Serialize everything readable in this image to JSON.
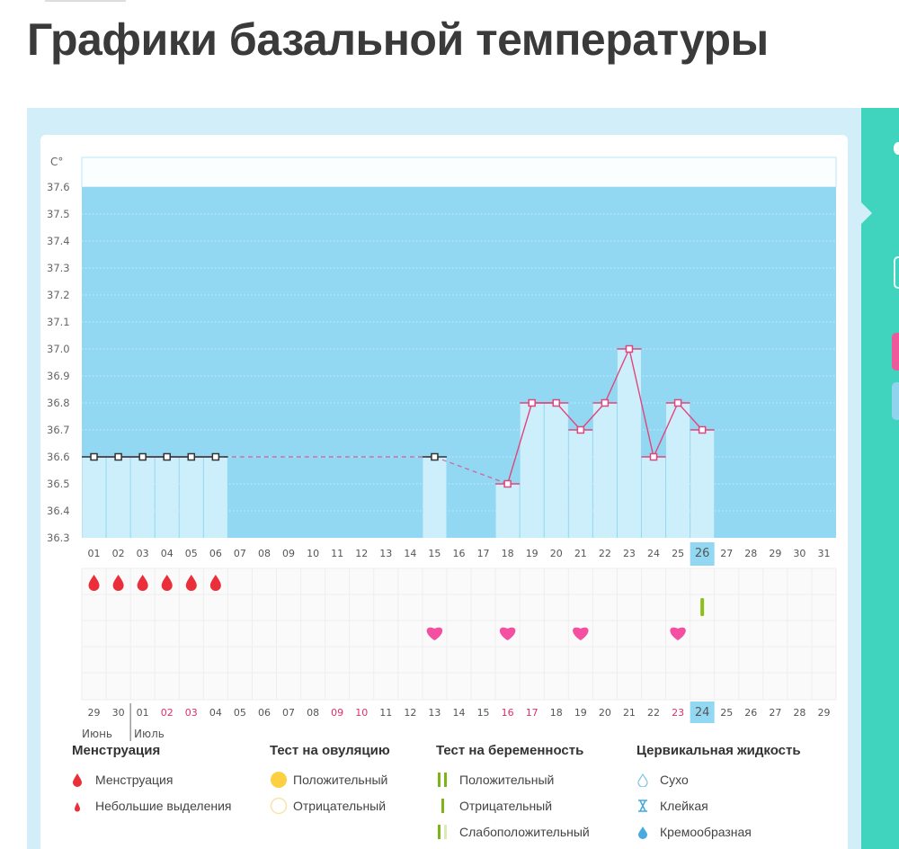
{
  "page_title": "Графики базальной температуры",
  "colors": {
    "plot_bg": "#93d8f2",
    "bar": "#cdeefb",
    "line": "#e0457b",
    "marker_early": "#333333",
    "heart": "#f44fa0",
    "drop": "#ea2f3a",
    "weekend_text": "#e0306a",
    "highlight": "#93d8f2",
    "side_panel": "#40d4bf"
  },
  "chart_data": {
    "type": "bar+line",
    "ylabel": "C°",
    "ylim": [
      36.3,
      37.6
    ],
    "yticks": [
      "37.6",
      "37.5",
      "37.4",
      "37.3",
      "37.2",
      "37.1",
      "37.0",
      "36.9",
      "36.8",
      "36.7",
      "36.6",
      "36.5",
      "36.4",
      "36.3"
    ],
    "grid": true,
    "cycle_days": [
      "01",
      "02",
      "03",
      "04",
      "05",
      "06",
      "07",
      "08",
      "09",
      "10",
      "11",
      "12",
      "13",
      "14",
      "15",
      "16",
      "17",
      "18",
      "19",
      "20",
      "21",
      "22",
      "23",
      "24",
      "25",
      "26",
      "27",
      "28",
      "29",
      "30",
      "31"
    ],
    "temperatures": [
      36.6,
      36.6,
      36.6,
      36.6,
      36.6,
      36.6,
      null,
      null,
      null,
      null,
      null,
      null,
      null,
      null,
      36.6,
      null,
      null,
      36.5,
      36.8,
      36.8,
      36.7,
      36.8,
      37.0,
      36.6,
      36.8,
      36.7,
      null,
      null,
      null,
      null,
      null
    ],
    "highlighted_day": "26",
    "calendar_dates": [
      "29",
      "30",
      "01",
      "02",
      "03",
      "04",
      "05",
      "06",
      "07",
      "08",
      "09",
      "10",
      "11",
      "12",
      "13",
      "14",
      "15",
      "16",
      "17",
      "18",
      "19",
      "20",
      "21",
      "22",
      "23",
      "24",
      "25",
      "26",
      "27",
      "28",
      "29"
    ],
    "weekend_dates_idx": [
      3,
      4,
      10,
      11,
      17,
      18,
      24
    ],
    "months": [
      "Июнь",
      "Июль"
    ],
    "menstruation_days": [
      "01",
      "02",
      "03",
      "04",
      "05",
      "06"
    ],
    "pregnancy_test_negative_days": [
      "26"
    ],
    "intercourse_days": [
      "15",
      "18",
      "21",
      "25"
    ]
  },
  "legend": [
    {
      "title": "Менструация",
      "items": [
        {
          "icon": "blood-drop-large",
          "label": "Менструация"
        },
        {
          "icon": "blood-drop-small",
          "label": "Небольшие выделения"
        }
      ]
    },
    {
      "title": "Тест на овуляцию",
      "items": [
        {
          "icon": "circle-filled-yellow",
          "label": "Положительный"
        },
        {
          "icon": "circle-outline-yellow",
          "label": "Отрицательный"
        }
      ]
    },
    {
      "title": "Тест на беременность",
      "items": [
        {
          "icon": "two-green-bars",
          "label": "Положительный"
        },
        {
          "icon": "one-green-bar",
          "label": "Отрицательный"
        },
        {
          "icon": "green-and-pale-bar",
          "label": "Слабоположительный"
        }
      ]
    },
    {
      "title": "Цервикальная жидкость",
      "items": [
        {
          "icon": "drop-outline",
          "label": "Сухо"
        },
        {
          "icon": "hourglass",
          "label": "Клейкая"
        },
        {
          "icon": "drop-filled-blue",
          "label": "Кремообразная"
        }
      ]
    }
  ]
}
